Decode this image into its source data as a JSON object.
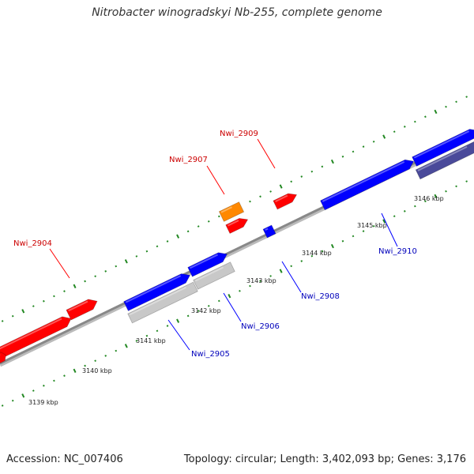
{
  "title": "Nitrobacter winogradskyi Nb-255, complete genome",
  "accession": "Accession: NC_007406",
  "summary": "Topology: circular; Length: 3,402,093 bp; Genes: 3,176",
  "colors": {
    "forward": "#ff0000",
    "reverse": "#0000ff",
    "orange": "#ff8800",
    "grey": "#c8c8c8",
    "purple": "#4a4a9a",
    "backbone": "#888888",
    "tick": "#228822",
    "forward_label": "#cc0000",
    "reverse_label": "#0000bb"
  },
  "ticks": [
    "3139 kbp",
    "3140 kbp",
    "3141 kbp",
    "3142 kbp",
    "3143 kbp",
    "3144 kbp",
    "3145 kbp",
    "3146 kbp"
  ],
  "genes_forward": [
    "Nwi_2904",
    "Nwi_2907",
    "Nwi_2909"
  ],
  "genes_reverse": [
    "Nwi_2905",
    "Nwi_2906",
    "Nwi_2908",
    "Nwi_2910"
  ]
}
